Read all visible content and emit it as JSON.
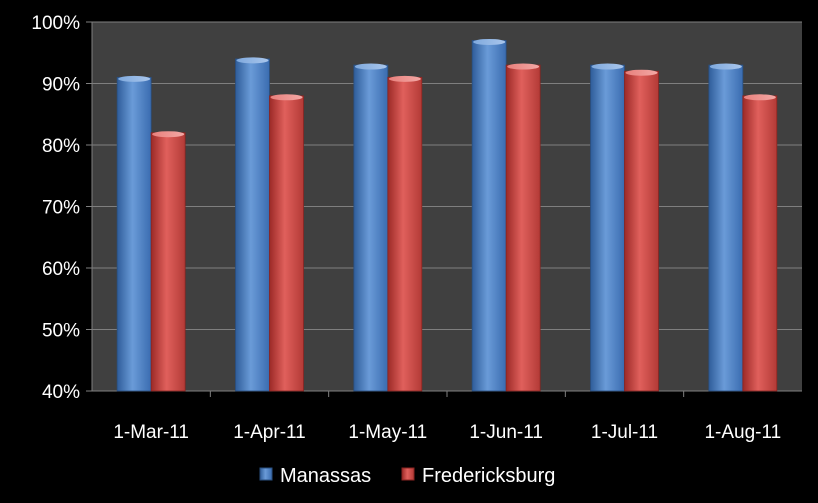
{
  "chart_data": {
    "type": "bar",
    "title": "",
    "xlabel": "",
    "ylabel": "",
    "categories": [
      "1-Mar-11",
      "1-Apr-11",
      "1-May-11",
      "1-Jun-11",
      "1-Jul-11",
      "1-Aug-11"
    ],
    "series": [
      {
        "name": "Manassas",
        "values": [
          91,
          94,
          93,
          97,
          93,
          93
        ],
        "color": "#4f81bd"
      },
      {
        "name": "Fredericksburg",
        "values": [
          82,
          88,
          91,
          93,
          92,
          88
        ],
        "color": "#c0504d"
      }
    ],
    "ylim": [
      40,
      100
    ],
    "yticks": [
      40,
      50,
      60,
      70,
      80,
      90,
      100
    ],
    "ytick_labels": [
      "40%",
      "50%",
      "60%",
      "70%",
      "80%",
      "90%",
      "100%"
    ],
    "grid": true,
    "legend_position": "bottom",
    "colors": {
      "background": "#000000",
      "plot_area": "#404040",
      "gridline": "#7f7f7f",
      "text": "#ffffff"
    }
  }
}
